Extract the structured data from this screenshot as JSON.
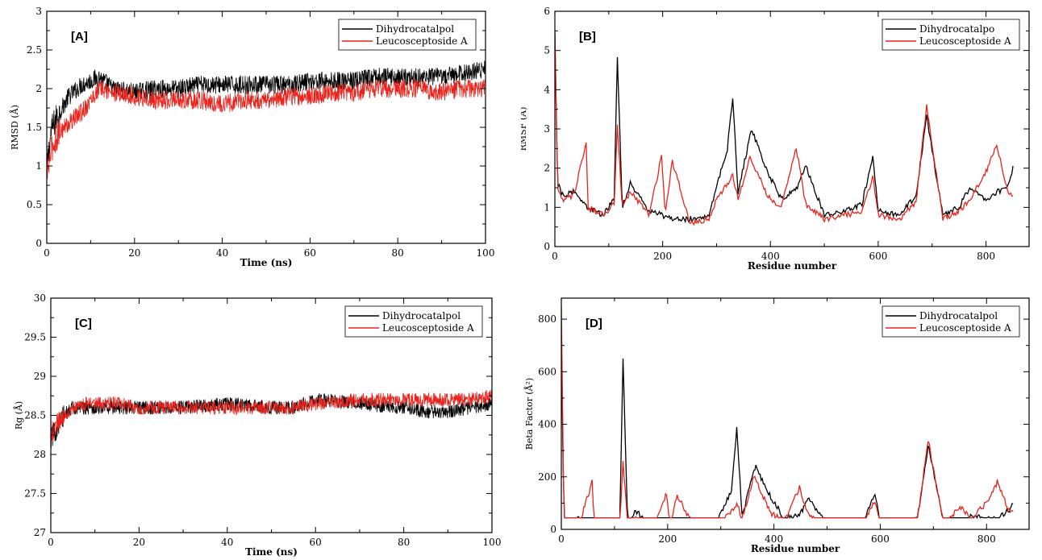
{
  "chart_data": [
    {
      "type": "line",
      "panel_label": "[A]",
      "xlabel": "Time (ns)",
      "ylabel": "RMSD (Å)",
      "xlim": [
        0,
        100
      ],
      "ylim": [
        0,
        3
      ],
      "xticks": [
        0,
        20,
        40,
        60,
        80,
        100
      ],
      "yticks": [
        0,
        0.5,
        1,
        1.5,
        2,
        2.5,
        3
      ],
      "legend_position": "top-right",
      "series": [
        {
          "name": "Dihydrocatalpol",
          "color": "#000000",
          "x": [
            0,
            1,
            2,
            3,
            4,
            5,
            6,
            8,
            10,
            12,
            15,
            20,
            25,
            30,
            35,
            40,
            45,
            50,
            55,
            60,
            65,
            70,
            75,
            80,
            85,
            90,
            95,
            100
          ],
          "y": [
            0.95,
            1.45,
            1.6,
            1.7,
            1.8,
            1.9,
            1.95,
            2.05,
            2.1,
            2.15,
            2.0,
            1.95,
            2.0,
            2.0,
            2.05,
            2.05,
            2.05,
            2.05,
            2.05,
            2.1,
            2.1,
            2.1,
            2.15,
            2.15,
            2.15,
            2.15,
            2.2,
            2.25
          ]
        },
        {
          "name": "Leucosceptoside A",
          "color": "#e8231c",
          "x": [
            0,
            1,
            2,
            3,
            4,
            5,
            6,
            8,
            10,
            12,
            15,
            20,
            25,
            30,
            35,
            40,
            45,
            50,
            55,
            60,
            65,
            70,
            75,
            80,
            85,
            90,
            95,
            100
          ],
          "y": [
            0.85,
            1.2,
            1.35,
            1.45,
            1.5,
            1.55,
            1.6,
            1.7,
            1.85,
            2.0,
            1.95,
            1.9,
            1.85,
            1.85,
            1.85,
            1.8,
            1.85,
            1.85,
            1.9,
            1.9,
            1.95,
            1.95,
            2.0,
            2.0,
            2.0,
            1.95,
            2.0,
            2.0
          ]
        }
      ]
    },
    {
      "type": "line",
      "panel_label": "[B]",
      "xlabel": "Residue number",
      "ylabel": "RMSF (Å)",
      "xlim": [
        0,
        880
      ],
      "ylim": [
        0,
        6
      ],
      "xticks": [
        0,
        200,
        400,
        600,
        800
      ],
      "yticks": [
        0,
        1,
        2,
        3,
        4,
        5,
        6
      ],
      "legend_position": "top-right",
      "series": [
        {
          "name": "Dihydrocatalpo",
          "color": "#000000",
          "x": [
            0,
            5,
            15,
            35,
            60,
            90,
            110,
            116,
            125,
            140,
            175,
            200,
            220,
            250,
            285,
            300,
            320,
            330,
            340,
            365,
            395,
            420,
            450,
            465,
            500,
            540,
            570,
            590,
            600,
            640,
            670,
            690,
            720,
            750,
            770,
            800,
            820,
            840,
            850
          ],
          "y": [
            5.5,
            1.6,
            1.3,
            1.4,
            1.0,
            0.8,
            1.2,
            4.9,
            1.0,
            1.6,
            0.9,
            0.8,
            0.7,
            0.7,
            0.8,
            1.5,
            2.5,
            3.8,
            1.4,
            3.0,
            1.9,
            1.2,
            1.5,
            2.1,
            0.8,
            0.9,
            1.1,
            2.3,
            0.9,
            0.8,
            1.3,
            3.3,
            0.8,
            1.0,
            1.5,
            1.2,
            1.4,
            1.5,
            2.0
          ]
        },
        {
          "name": "Leucosceptoside A",
          "color": "#e8231c",
          "x": [
            0,
            5,
            15,
            35,
            58,
            62,
            90,
            110,
            116,
            125,
            140,
            175,
            198,
            205,
            218,
            250,
            285,
            300,
            320,
            330,
            340,
            362,
            395,
            420,
            448,
            465,
            500,
            540,
            570,
            590,
            600,
            640,
            670,
            690,
            720,
            750,
            770,
            800,
            820,
            840,
            850
          ],
          "y": [
            5.6,
            1.5,
            1.2,
            1.3,
            2.6,
            1.0,
            0.8,
            1.1,
            3.1,
            1.0,
            1.4,
            0.8,
            2.3,
            0.8,
            2.2,
            0.6,
            0.7,
            1.2,
            1.6,
            1.8,
            1.2,
            2.3,
            1.3,
            1.0,
            2.5,
            1.1,
            0.7,
            0.8,
            0.9,
            1.8,
            0.8,
            0.7,
            1.1,
            3.6,
            0.7,
            0.9,
            1.2,
            1.9,
            2.6,
            1.4,
            1.3
          ]
        }
      ]
    },
    {
      "type": "line",
      "panel_label": "[C]",
      "xlabel": "Time (ns)",
      "ylabel": "Rg (Å)",
      "xlim": [
        0,
        100
      ],
      "ylim": [
        27,
        30
      ],
      "xticks": [
        0,
        20,
        40,
        60,
        80,
        100
      ],
      "yticks": [
        27,
        27.5,
        28,
        28.5,
        29,
        29.5,
        30
      ],
      "legend_position": "top-right",
      "series": [
        {
          "name": "Dihydrocatalpol",
          "color": "#000000",
          "x": [
            0,
            1,
            2,
            3,
            4,
            5,
            8,
            10,
            15,
            20,
            30,
            40,
            50,
            55,
            60,
            70,
            80,
            85,
            90,
            95,
            100
          ],
          "y": [
            28.2,
            28.3,
            28.4,
            28.5,
            28.55,
            28.6,
            28.6,
            28.6,
            28.6,
            28.6,
            28.6,
            28.65,
            28.6,
            28.6,
            28.7,
            28.65,
            28.6,
            28.55,
            28.55,
            28.6,
            28.65
          ]
        },
        {
          "name": "Leucosceptoside A",
          "color": "#e8231c",
          "x": [
            0,
            1,
            2,
            3,
            4,
            5,
            8,
            10,
            15,
            20,
            30,
            40,
            50,
            55,
            60,
            70,
            80,
            85,
            90,
            95,
            100
          ],
          "y": [
            28.25,
            28.35,
            28.45,
            28.5,
            28.55,
            28.6,
            28.65,
            28.65,
            28.65,
            28.6,
            28.6,
            28.6,
            28.6,
            28.6,
            28.65,
            28.7,
            28.7,
            28.7,
            28.7,
            28.7,
            28.75
          ]
        }
      ]
    },
    {
      "type": "line",
      "panel_label": "[D]",
      "xlabel": "Residue number",
      "ylabel": "Beta Factor (Å²)",
      "xlim": [
        0,
        880
      ],
      "ylim": [
        0,
        880
      ],
      "xticks": [
        0,
        200,
        400,
        600,
        800
      ],
      "yticks": [
        0,
        200,
        400,
        600,
        800
      ],
      "legend_position": "top-right",
      "series": [
        {
          "name": "Dihydrocatalpol",
          "color": "#000000",
          "x": [
            0,
            5,
            15,
            35,
            60,
            90,
            110,
            116,
            125,
            140,
            175,
            200,
            250,
            285,
            300,
            320,
            330,
            340,
            365,
            395,
            420,
            450,
            465,
            500,
            540,
            570,
            590,
            600,
            640,
            670,
            690,
            720,
            750,
            770,
            800,
            820,
            840,
            850
          ],
          "y": [
            700,
            40,
            30,
            40,
            20,
            10,
            30,
            640,
            20,
            70,
            10,
            10,
            5,
            10,
            60,
            150,
            380,
            50,
            240,
            120,
            40,
            60,
            120,
            15,
            20,
            30,
            140,
            20,
            15,
            40,
            320,
            15,
            20,
            50,
            40,
            40,
            70,
            100
          ]
        },
        {
          "name": "Leucosceptoside A",
          "color": "#e8231c",
          "x": [
            0,
            5,
            15,
            35,
            58,
            62,
            90,
            110,
            116,
            125,
            140,
            175,
            198,
            205,
            218,
            250,
            285,
            300,
            320,
            330,
            340,
            362,
            395,
            420,
            448,
            465,
            500,
            540,
            570,
            590,
            600,
            640,
            670,
            690,
            720,
            750,
            770,
            800,
            820,
            840,
            850
          ],
          "y": [
            860,
            30,
            25,
            30,
            180,
            15,
            10,
            20,
            260,
            15,
            40,
            5,
            140,
            10,
            130,
            5,
            10,
            30,
            70,
            100,
            40,
            200,
            60,
            30,
            160,
            50,
            10,
            15,
            25,
            110,
            15,
            10,
            30,
            340,
            10,
            90,
            40,
            100,
            180,
            80,
            60
          ]
        }
      ]
    }
  ]
}
